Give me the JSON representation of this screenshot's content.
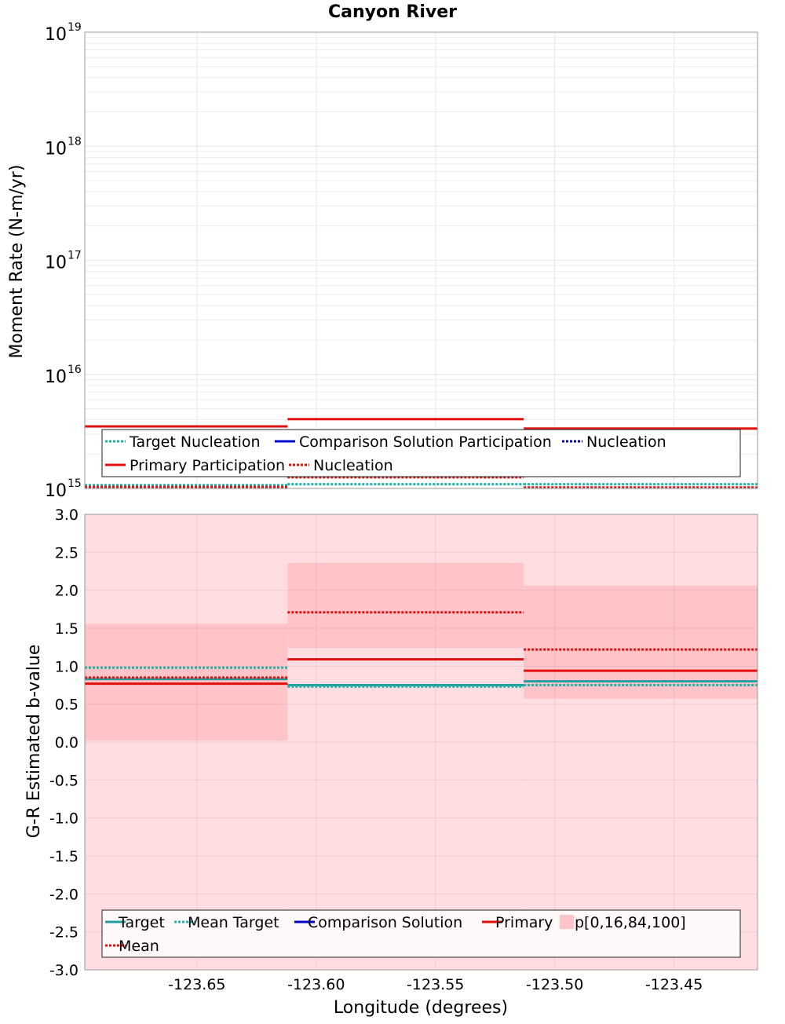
{
  "figure": {
    "title": "Canyon River",
    "xlabel": "Longitude (degrees)"
  },
  "chart_data": [
    {
      "type": "line",
      "step": true,
      "ylabel": "Moment Rate (N-m/yr)",
      "yscale": "log",
      "ylim": [
        1000000000000000.0,
        1e+19
      ],
      "xlim": [
        -123.697,
        -123.415
      ],
      "y_tick_exponents": [
        "15",
        "16",
        "17",
        "18",
        "19"
      ],
      "y_tick_base": "10",
      "grid": true,
      "bin_edges": [
        -123.697,
        -123.612,
        -123.513,
        -123.415
      ],
      "series": [
        {
          "name": "Target Nucleation",
          "role": "target-nucleation",
          "color": "#20b2aa",
          "style": "dotted",
          "values": [
            1070000000000000.0,
            1090000000000000.0,
            1090000000000000.0
          ]
        },
        {
          "name": "Comparison Solution Participation",
          "role": "comparison-participation",
          "color": "#0000cc",
          "style": "solid",
          "values": [
            null,
            null,
            null
          ]
        },
        {
          "name": "Nucleation",
          "role": "comparison-nucleation",
          "color": "#0000aa",
          "style": "dotted",
          "values": [
            null,
            null,
            null
          ]
        },
        {
          "name": "Primary Participation",
          "role": "primary-participation",
          "color": "#e01010",
          "style": "solid",
          "values": [
            3500000000000000.0,
            4050000000000000.0,
            3350000000000000.0
          ]
        },
        {
          "name": "Nucleation",
          "role": "primary-nucleation",
          "color": "#e01010",
          "style": "dotted",
          "values": [
            1030000000000000.0,
            1250000000000000.0,
            1020000000000000.0
          ]
        }
      ],
      "legend": {
        "placement": "bottom",
        "rows": [
          [
            {
              "label": "Target Nucleation",
              "color": "#20b2aa",
              "style": "dotted"
            },
            {
              "label": "Comparison Solution Participation",
              "color": "#0000cc",
              "style": "solid"
            },
            {
              "label": "Nucleation",
              "color": "#0000aa",
              "style": "dotted"
            }
          ],
          [
            {
              "label": "Primary Participation",
              "color": "#e01010",
              "style": "solid"
            },
            {
              "label": "Nucleation",
              "color": "#e01010",
              "style": "dotted"
            }
          ]
        ]
      }
    },
    {
      "type": "line",
      "step": true,
      "ylabel": "G-R Estimated b-value",
      "ylim": [
        -3.0,
        3.0
      ],
      "xlim": [
        -123.697,
        -123.415
      ],
      "x_ticks": [
        -123.65,
        -123.6,
        -123.55,
        -123.5,
        -123.45
      ],
      "x_tick_labels": [
        "-123.65",
        "-123.60",
        "-123.55",
        "-123.50",
        "-123.45"
      ],
      "y_ticks": [
        3.0,
        2.5,
        2.0,
        1.5,
        1.0,
        0.5,
        0.0,
        -0.5,
        -1.0,
        -1.5,
        -2.0,
        -2.5,
        -3.0
      ],
      "y_tick_labels": [
        "3.0",
        "2.5",
        "2.0",
        "1.5",
        "1.0",
        "0.5",
        "0.0",
        "-0.5",
        "-1.0",
        "-1.5",
        "-2.0",
        "-2.5",
        "-3.0"
      ],
      "grid": true,
      "bin_edges": [
        -123.697,
        -123.612,
        -123.513,
        -123.415
      ],
      "bands": [
        {
          "name": "p[0,100]",
          "color": "#ffdde0",
          "low": [
            -3.0,
            -3.0,
            -3.0
          ],
          "high": [
            3.0,
            3.0,
            3.0
          ]
        },
        {
          "name": "p[16,84]",
          "color": "#ffc4c8",
          "low": [
            0.02,
            1.24,
            0.57
          ],
          "high": [
            1.56,
            2.36,
            2.06
          ]
        }
      ],
      "series": [
        {
          "name": "Target",
          "role": "target",
          "color": "#20a0a0",
          "style": "solid",
          "values": [
            0.83,
            0.75,
            0.8
          ]
        },
        {
          "name": "Mean Target",
          "role": "mean-target",
          "color": "#20b2aa",
          "style": "dotted",
          "values": [
            0.98,
            0.73,
            0.75
          ]
        },
        {
          "name": "Comparison Solution",
          "role": "comparison",
          "color": "#0000cc",
          "style": "solid",
          "values": [
            null,
            null,
            null
          ]
        },
        {
          "name": "Primary",
          "role": "primary",
          "color": "#e01010",
          "style": "solid",
          "values": [
            0.77,
            1.09,
            0.94
          ]
        },
        {
          "name": "Mean",
          "role": "primary-mean",
          "color": "#e01010",
          "style": "dotted",
          "values": [
            0.85,
            1.71,
            1.22
          ]
        }
      ],
      "legend": {
        "placement": "bottom",
        "rows": [
          [
            {
              "label": "Target",
              "color": "#20a0a0",
              "style": "solid"
            },
            {
              "label": "Mean Target",
              "color": "#20b2aa",
              "style": "dotted"
            },
            {
              "label": "Comparison Solution",
              "color": "#0000cc",
              "style": "solid"
            },
            {
              "label": "Primary",
              "color": "#e01010",
              "style": "solid"
            },
            {
              "label": "p[0,16,84,100]",
              "color": "#ffc4c8",
              "style": "patch"
            }
          ],
          [
            {
              "label": "Mean",
              "color": "#e01010",
              "style": "dotted"
            }
          ]
        ]
      }
    }
  ]
}
